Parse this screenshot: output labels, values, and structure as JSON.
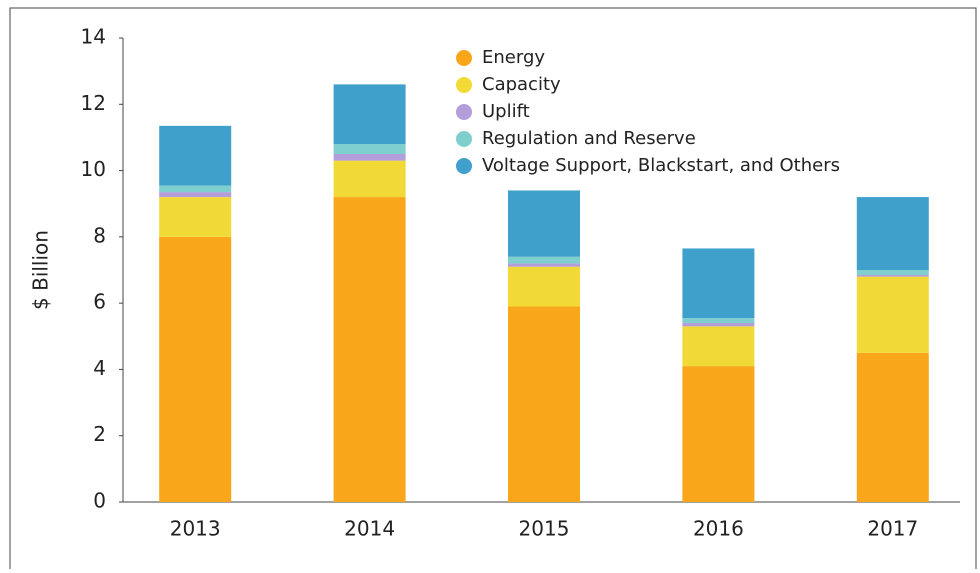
{
  "chart_data": {
    "type": "stacked-bar",
    "y_label": "$ Billion",
    "categories": [
      "2013",
      "2014",
      "2015",
      "2016",
      "2017"
    ],
    "series": [
      {
        "name": "Energy",
        "color": "#F9A61A",
        "values": [
          8.0,
          9.2,
          5.9,
          4.1,
          4.5
        ]
      },
      {
        "name": "Capacity",
        "color": "#F2DA36",
        "values": [
          1.2,
          1.1,
          1.2,
          1.2,
          2.3
        ]
      },
      {
        "name": "Uplift",
        "color": "#B39DDB",
        "values": [
          0.15,
          0.2,
          0.1,
          0.1,
          0.05
        ]
      },
      {
        "name": "Regulation and Reserve",
        "color": "#80CFCF",
        "values": [
          0.2,
          0.3,
          0.2,
          0.15,
          0.15
        ]
      },
      {
        "name": "Voltage Support, Blackstart, and Others",
        "color": "#3FA0CC",
        "values": [
          1.8,
          1.8,
          2.0,
          2.1,
          2.2
        ]
      }
    ],
    "ylim": [
      0,
      14
    ],
    "yticks": [
      0,
      2,
      4,
      6,
      8,
      10,
      12,
      14
    ]
  }
}
